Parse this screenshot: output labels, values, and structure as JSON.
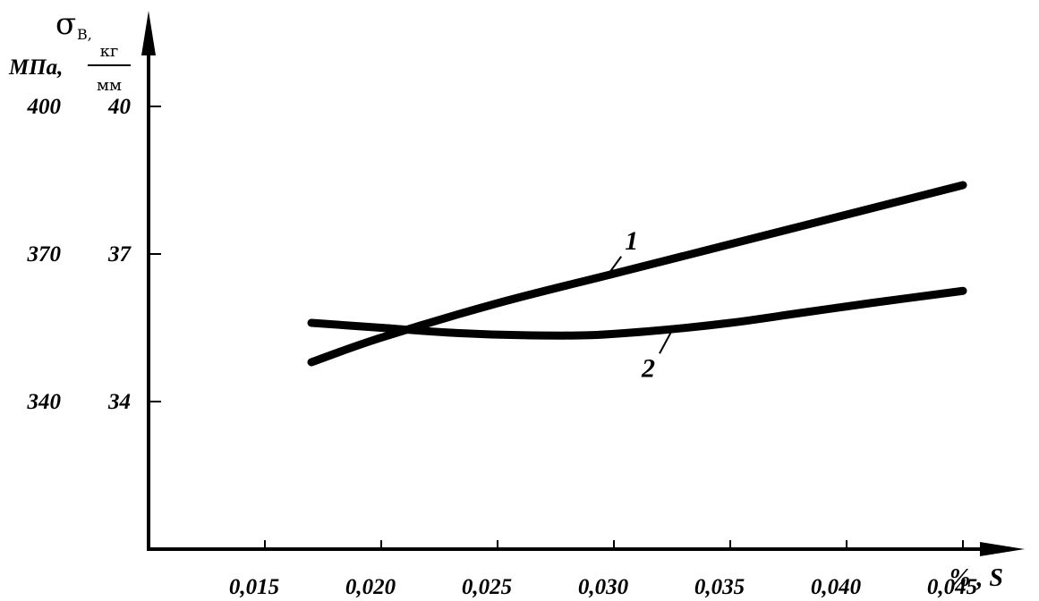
{
  "chart_data": {
    "type": "line",
    "title": "",
    "ylabel": {
      "symbol": "σ",
      "subscript": "В,",
      "unit_mpa": "МПа,",
      "unit_kg_num": "кг",
      "unit_kg_den": "мм"
    },
    "xlabel": "% , S",
    "xlim": [
      0.01,
      0.047
    ],
    "ylim": [
      31,
      41
    ],
    "x_ticks": [
      {
        "value": 0.015,
        "label": "0,015"
      },
      {
        "value": 0.02,
        "label": "0,020"
      },
      {
        "value": 0.025,
        "label": "0,025"
      },
      {
        "value": 0.03,
        "label": "0,030"
      },
      {
        "value": 0.035,
        "label": "0,035"
      },
      {
        "value": 0.04,
        "label": "0,040"
      },
      {
        "value": 0.045,
        "label": "0,045"
      }
    ],
    "y_ticks": [
      {
        "value": 40,
        "label": "40",
        "mpa_label": "400"
      },
      {
        "value": 37,
        "label": "37",
        "mpa_label": "370"
      },
      {
        "value": 34,
        "label": "34",
        "mpa_label": "340"
      }
    ],
    "series": [
      {
        "name": "1",
        "x": [
          0.017,
          0.02,
          0.025,
          0.03,
          0.035,
          0.04,
          0.045
        ],
        "y": [
          34.8,
          35.3,
          36.0,
          36.6,
          37.2,
          37.8,
          38.4
        ]
      },
      {
        "name": "2",
        "x": [
          0.017,
          0.02,
          0.023,
          0.026,
          0.029,
          0.032,
          0.035,
          0.038,
          0.041,
          0.045
        ],
        "y": [
          35.6,
          35.5,
          35.4,
          35.35,
          35.35,
          35.45,
          35.6,
          35.8,
          36.0,
          36.25
        ]
      }
    ],
    "grid": false,
    "legend": "none"
  }
}
